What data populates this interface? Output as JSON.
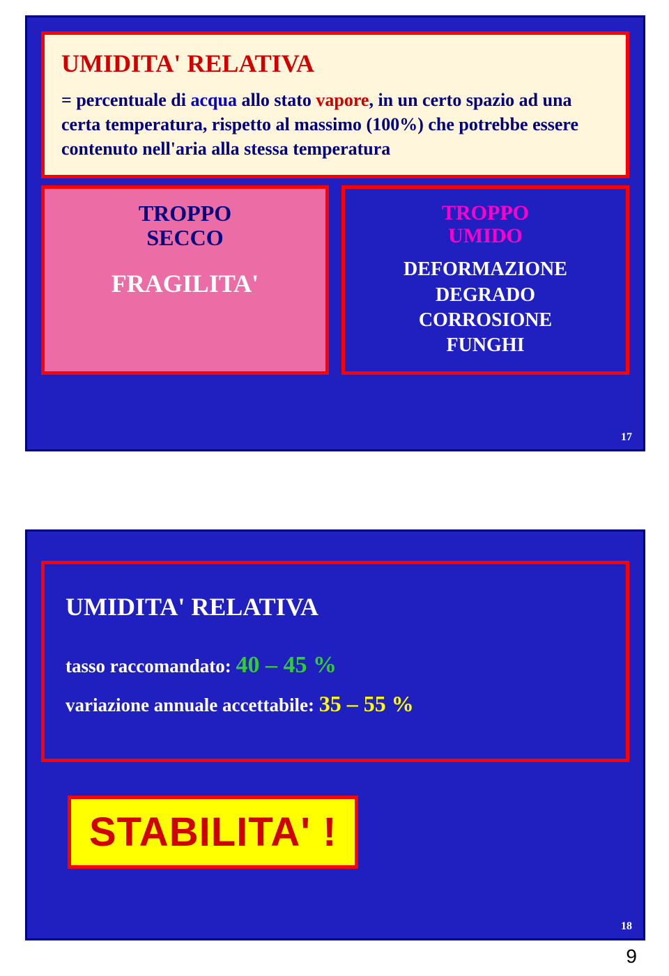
{
  "colors": {
    "slide_bg": "#2020c0",
    "slide_border": "#000080",
    "panel_bg": "#fff6dc",
    "red_border": "#ff0000",
    "title_red": "#d00000",
    "text_navy": "#000080",
    "text_white": "#ffffff",
    "pink_bg": "#ec6ca6",
    "magenta": "#ff00cc",
    "green": "#33cc33",
    "yellow_text": "#ffff00",
    "yellow_bg": "#ffff00"
  },
  "slide1": {
    "title": "UMIDITA' RELATIVA",
    "desc_pre": "= percentuale di ",
    "desc_acqua": "acqua",
    "desc_mid1": " allo stato ",
    "desc_vapore": "vapore",
    "desc_rest": ", in un certo spazio ad una certa temperatura, rispetto al massimo (100%) che potrebbe essere contenuto nell'aria alla stessa temperatura",
    "dry": {
      "title_l1": "TROPPO",
      "title_l2": "SECCO",
      "text": "FRAGILITA'"
    },
    "humid": {
      "title_l1": "TROPPO",
      "title_l2": "UMIDO",
      "l1": "DEFORMAZIONE",
      "l2": "DEGRADO",
      "l3": "CORROSIONE",
      "l4": "FUNGHI"
    },
    "page": "17"
  },
  "slide2": {
    "title": "UMIDITA' RELATIVA",
    "line1_pre": "tasso raccomandato: ",
    "line1_val": "40 – 45 %",
    "line2_pre": "variazione annuale accettabile: ",
    "line2_val": "35 – 55 %",
    "stab": "STABILITA' !",
    "page": "18"
  },
  "footer": "9",
  "fonts": {
    "title_size": 36,
    "desc_size": 26,
    "dry_title_size": 32,
    "dry_text_size": 36,
    "humid_title_size": 30,
    "humid_text_size": 28,
    "s2_line_size": 27,
    "s2_val_size": 34,
    "stab_size": 58
  }
}
